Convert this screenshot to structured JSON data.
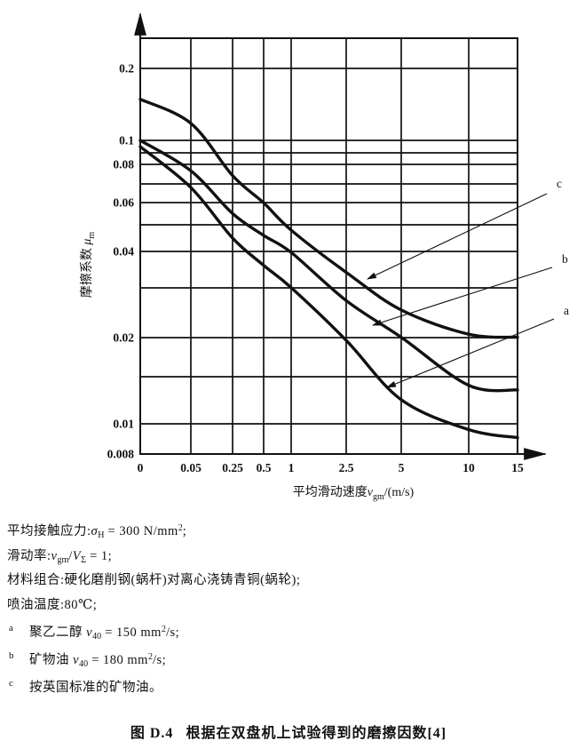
{
  "colors": {
    "ink": "#111111",
    "paper": "#ffffff"
  },
  "chart_data": {
    "type": "line",
    "title": "",
    "x_scale": "irregular (compressed quasi-log of sliding speed)",
    "y_scale": "log",
    "ylim": [
      0.008,
      0.23
    ],
    "x_tick_labels": [
      "0",
      "0.05",
      "0.25",
      "0.5",
      "1",
      "2.5",
      "5",
      "10",
      "15"
    ],
    "x_values": [
      0,
      0.05,
      0.25,
      0.5,
      1,
      2.5,
      5,
      10,
      15
    ],
    "y_tick_labels": [
      "0.2",
      "0.1",
      "0.08",
      "0.06",
      "0.04",
      "0.02",
      "0.01",
      "0.008"
    ],
    "y_gridline_values_unlabeled": [
      0.09,
      0.07,
      0.05,
      0.03,
      0.015
    ],
    "xlabel_segments": [
      {
        "t": "平均滑动速度"
      },
      {
        "t": "v",
        "i": 1
      },
      {
        "t": "gm",
        "s": "sub"
      },
      {
        "t": "/(m/s)"
      }
    ],
    "ylabel_segments": [
      {
        "t": "摩擦系数 "
      },
      {
        "t": "μ",
        "i": 1
      },
      {
        "t": "m",
        "s": "sub"
      }
    ],
    "series": [
      {
        "name": "a",
        "values": [
          0.095,
          0.068,
          0.045,
          0.036,
          0.03,
          0.0195,
          0.012,
          0.0094,
          0.0088
        ]
      },
      {
        "name": "b",
        "values": [
          0.1,
          0.078,
          0.055,
          0.046,
          0.04,
          0.027,
          0.02,
          0.0135,
          0.013
        ]
      },
      {
        "name": "c",
        "values": [
          0.14,
          0.115,
          0.075,
          0.06,
          0.048,
          0.034,
          0.025,
          0.0205,
          0.02
        ]
      }
    ],
    "legend_position": "right-side leader arrows"
  },
  "conditions": [
    {
      "segments": [
        {
          "t": "平均接触应力:"
        },
        {
          "t": "σ",
          "i": 1
        },
        {
          "t": "H",
          "s": "sub"
        },
        {
          "t": " = 300 N/mm"
        },
        {
          "t": "2",
          "s": "sup"
        },
        {
          "t": ";"
        }
      ]
    },
    {
      "segments": [
        {
          "t": "滑动率:"
        },
        {
          "t": "v",
          "i": 1
        },
        {
          "t": "gm",
          "s": "sub"
        },
        {
          "t": "/"
        },
        {
          "t": "V",
          "i": 1
        },
        {
          "t": "Σ",
          "s": "sub"
        },
        {
          "t": " = 1;"
        }
      ]
    },
    {
      "segments": [
        {
          "t": "材料组合:硬化磨削钢(蜗杆)对离心浇铸青铜(蜗轮);"
        }
      ]
    },
    {
      "segments": [
        {
          "t": "喷油温度:80℃;"
        }
      ]
    }
  ],
  "footnotes": [
    {
      "marker": "a",
      "segments": [
        {
          "t": "聚乙二醇 "
        },
        {
          "t": "ν",
          "i": 1
        },
        {
          "t": "40",
          "s": "sub"
        },
        {
          "t": " = 150 mm"
        },
        {
          "t": "2",
          "s": "sup"
        },
        {
          "t": "/s;"
        }
      ]
    },
    {
      "marker": "b",
      "segments": [
        {
          "t": "矿物油 "
        },
        {
          "t": "ν",
          "i": 1
        },
        {
          "t": "40",
          "s": "sub"
        },
        {
          "t": " = 180 mm"
        },
        {
          "t": "2",
          "s": "sup"
        },
        {
          "t": "/s;"
        }
      ]
    },
    {
      "marker": "c",
      "segments": [
        {
          "t": "按英国标准的矿物油。"
        }
      ]
    }
  ],
  "caption": {
    "figure_label": "图 D.4",
    "text": "根据在双盘机上试验得到的磨擦因数",
    "reference": "[4]"
  }
}
